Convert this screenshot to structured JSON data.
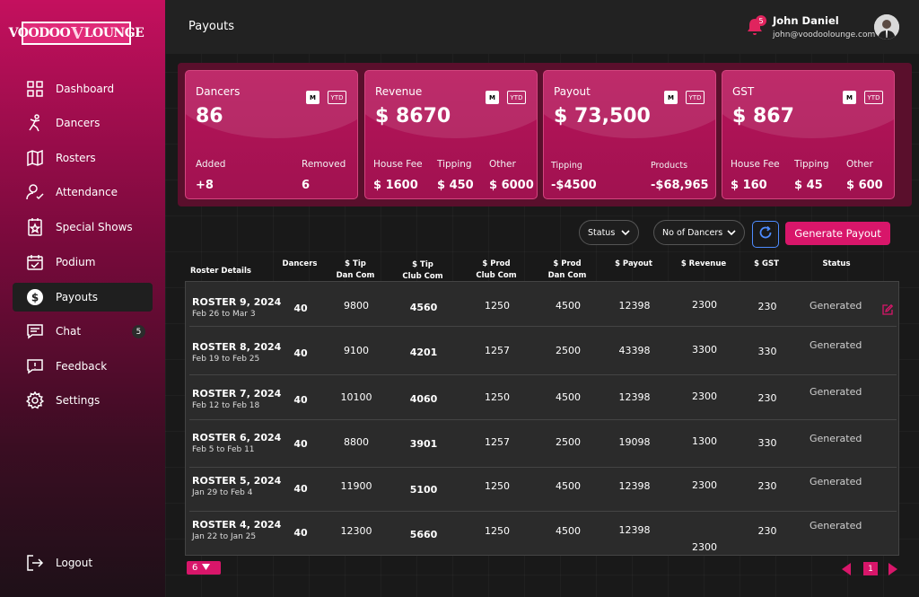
{
  "brand": {
    "logo_left": "VOODOO",
    "logo_mid": "V",
    "logo_right": "LOUNGE"
  },
  "sidebar": {
    "items": [
      {
        "label": "Dashboard",
        "icon": "grid-icon"
      },
      {
        "label": "Dancers",
        "icon": "dancer-icon"
      },
      {
        "label": "Rosters",
        "icon": "map-icon"
      },
      {
        "label": "Attendance",
        "icon": "user-check-icon"
      },
      {
        "label": "Special Shows",
        "icon": "star-badge-icon"
      },
      {
        "label": "Podium",
        "icon": "calendar-check-icon"
      },
      {
        "label": "Payouts",
        "icon": "dollar-icon"
      },
      {
        "label": "Chat",
        "icon": "chat-icon",
        "badge": "5"
      },
      {
        "label": "Feedback",
        "icon": "feedback-icon"
      },
      {
        "label": "Settings",
        "icon": "gear-icon"
      }
    ],
    "logout": "Logout",
    "active": "Payouts"
  },
  "header": {
    "title": "Payouts",
    "notif_count": "5",
    "user_name": "John Daniel",
    "user_email": "john@voodoolounge.com"
  },
  "cards": [
    {
      "title": "Dancers",
      "value": "86",
      "chip_m": "M",
      "chip_ytd": "YTD",
      "subs": [
        {
          "label": "Added",
          "value": "+8"
        },
        {
          "label": "Removed",
          "value": "6"
        }
      ]
    },
    {
      "title": "Revenue",
      "value": "$ 8670",
      "chip_m": "M",
      "chip_ytd": "YTD",
      "subs": [
        {
          "label": "House Fee",
          "value": "$ 1600"
        },
        {
          "label": "Tipping",
          "value": "$ 450"
        },
        {
          "label": "Other",
          "value": "$ 6000"
        }
      ]
    },
    {
      "title": "Payout",
      "value": "$ 73,500",
      "chip_m": "M",
      "chip_ytd": "YTD",
      "subs": [
        {
          "label": "Tipping",
          "value": "-$4500"
        },
        {
          "label": "Products",
          "value": "-$68,965"
        }
      ]
    },
    {
      "title": "GST",
      "value": "$ 867",
      "chip_m": "M",
      "chip_ytd": "YTD",
      "subs": [
        {
          "label": "House Fee",
          "value": "$ 160"
        },
        {
          "label": "Tipping",
          "value": "$ 45"
        },
        {
          "label": "Other",
          "value": "$ 600"
        }
      ]
    }
  ],
  "filters": {
    "status": "Status",
    "dancers": "No of Dancers",
    "generate": "Generate Payout"
  },
  "table": {
    "headers": [
      "Roster Details",
      "Dancers",
      "$ Tip\nDan Com",
      "$ Tip\nClub Com",
      "$ Prod\nClub Com",
      "$ Prod\nDan Com",
      "$ Payout",
      "$ Revenue",
      "$ GST",
      "Status"
    ],
    "rows": [
      {
        "name": "ROSTER 9, 2024",
        "dates": "Feb 26 to Mar 3",
        "dancers": "40",
        "tip_dan": "9800",
        "tip_club": "4560",
        "prod_club": "1250",
        "prod_dan": "4500",
        "payout": "12398",
        "revenue": "2300",
        "gst": "230",
        "status": "Generated"
      },
      {
        "name": "ROSTER 8, 2024",
        "dates": "Feb 19 to Feb 25",
        "dancers": "40",
        "tip_dan": "9100",
        "tip_club": "4201",
        "prod_club": "1257",
        "prod_dan": "2500",
        "payout": "43398",
        "revenue": "3300",
        "gst": "330",
        "status": "Generated"
      },
      {
        "name": "ROSTER 7, 2024",
        "dates": "Feb 12 to Feb 18",
        "dancers": "40",
        "tip_dan": "10100",
        "tip_club": "4060",
        "prod_club": "1250",
        "prod_dan": "4500",
        "payout": "12398",
        "revenue": "2300",
        "gst": "230",
        "status": "Generated"
      },
      {
        "name": "ROSTER 6, 2024",
        "dates": "Feb 5 to Feb 11",
        "dancers": "40",
        "tip_dan": "8800",
        "tip_club": "3901",
        "prod_club": "1257",
        "prod_dan": "2500",
        "payout": "19098",
        "revenue": "1300",
        "gst": "330",
        "status": "Generated"
      },
      {
        "name": "ROSTER 5, 2024",
        "dates": "Jan 29 to Feb 4",
        "dancers": "40",
        "tip_dan": "11900",
        "tip_club": "5100",
        "prod_club": "1250",
        "prod_dan": "4500",
        "payout": "12398",
        "revenue": "2300",
        "gst": "230",
        "status": "Generated"
      },
      {
        "name": "ROSTER 4, 2024",
        "dates": "Jan 22 to Jan 25",
        "dancers": "40",
        "tip_dan": "12300",
        "tip_club": "5660",
        "prod_club": "1250",
        "prod_dan": "4500",
        "payout": "12398",
        "revenue": "2300",
        "gst": "230",
        "status": "Generated"
      }
    ]
  },
  "pagination": {
    "page_size": "6",
    "current_page": "1"
  },
  "colors": {
    "accent": "#d8166a",
    "sidebar_top": "#c4105e",
    "card": "#b8145a"
  }
}
